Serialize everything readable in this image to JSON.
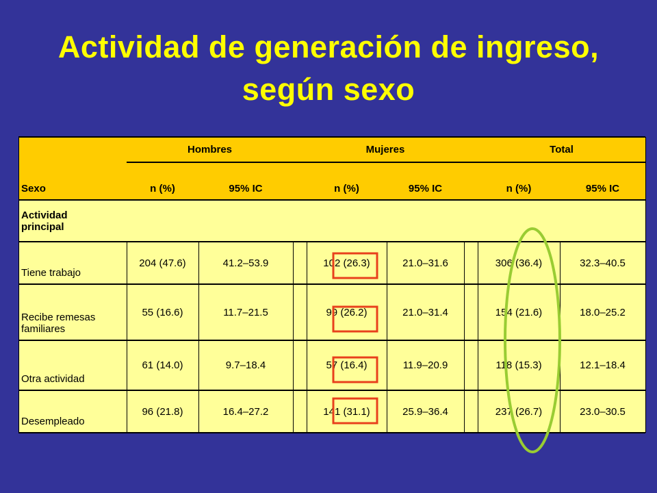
{
  "title": "Actividad de generación de ingreso, según sexo",
  "table": {
    "row_header": "Sexo",
    "groups": [
      "Hombres",
      "Mujeres",
      "Total"
    ],
    "subheaders": [
      "n (%)",
      "95% IC",
      "n (%)",
      "95% IC",
      "n (%)",
      "95% IC"
    ],
    "section": "Actividad principal",
    "rows": [
      [
        "Tiene trabajo",
        "204 (47.6)",
        "41.2–53.9",
        "102 (26.3)",
        "21.0–31.6",
        "306 (36.4)",
        "32.3–40.5"
      ],
      [
        "Recibe remesas familiares",
        "55 (16.6)",
        "11.7–21.5",
        "99 (26.2)",
        "21.0–31.4",
        "154 (21.6)",
        "18.0–25.2"
      ],
      [
        "Otra actividad",
        "61 (14.0)",
        "9.7–18.4",
        "57 (16.4)",
        "11.9–20.9",
        "118 (15.3)",
        "12.1–18.4"
      ],
      [
        "Desempleado",
        "96 (21.8)",
        "16.4–27.2",
        "141 (31.1)",
        "25.9–36.4",
        "237 (26.7)",
        "23.0–30.5"
      ]
    ]
  }
}
